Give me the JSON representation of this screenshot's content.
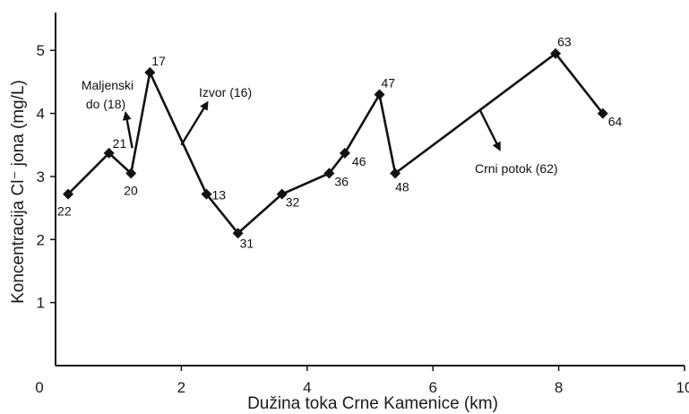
{
  "chart_data": {
    "type": "line",
    "xlabel": "Dužina toka Crne Kamenice (km)",
    "ylabel": "Koncentracija Cl⁻ jona (mg/L)",
    "xlim": [
      0,
      10
    ],
    "ylim": [
      0,
      5.6
    ],
    "xticks": [
      0,
      2,
      4,
      6,
      8,
      10
    ],
    "yticks": [
      1,
      2,
      3,
      4,
      5
    ],
    "grid": false,
    "colors": {
      "line": "#111111",
      "marker": "#111111",
      "axis": "#111111"
    },
    "series": [
      {
        "points": [
          {
            "x": 0.2,
            "y": 2.72,
            "label": "22"
          },
          {
            "x": 0.85,
            "y": 3.37,
            "label": "21"
          },
          {
            "x": 1.2,
            "y": 3.05,
            "label": "20"
          },
          {
            "x": 1.5,
            "y": 4.65,
            "label": "17"
          },
          {
            "x": 2.4,
            "y": 2.72,
            "label": "13"
          },
          {
            "x": 2.9,
            "y": 2.1,
            "label": "31"
          },
          {
            "x": 3.6,
            "y": 2.72,
            "label": "32"
          },
          {
            "x": 4.35,
            "y": 3.05,
            "label": "36"
          },
          {
            "x": 4.6,
            "y": 3.37,
            "label": "46"
          },
          {
            "x": 5.15,
            "y": 4.3,
            "label": "47"
          },
          {
            "x": 5.4,
            "y": 3.05,
            "label": "48"
          },
          {
            "x": 7.95,
            "y": 4.95,
            "label": "63"
          },
          {
            "x": 8.7,
            "y": 4.0,
            "label": "64"
          }
        ]
      }
    ],
    "annotations": [
      {
        "text": "Maljenski",
        "from": [
          1.22,
          3.45
        ],
        "to": [
          1.12,
          3.98
        ]
      },
      {
        "text": "do (18)"
      },
      {
        "text": "Izvor (16)",
        "from": [
          2.0,
          3.5
        ],
        "to": [
          2.4,
          4.15
        ]
      },
      {
        "text": "Crni potok (62)",
        "from": [
          6.75,
          4.05
        ],
        "to": [
          7.05,
          3.45
        ]
      }
    ]
  }
}
